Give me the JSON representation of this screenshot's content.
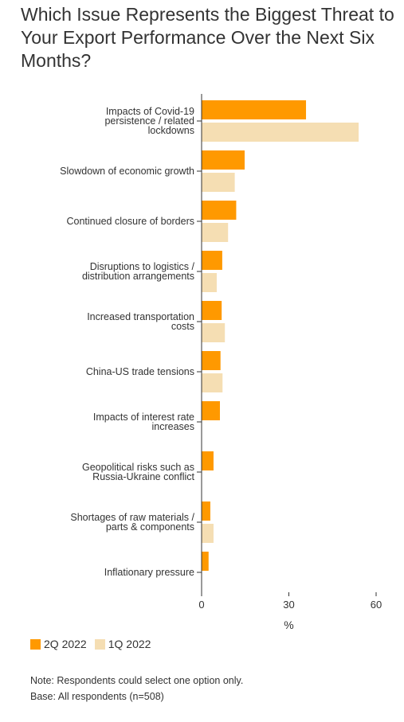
{
  "title": "Which Issue Represents the Biggest Threat to Your Export Performance Over the Next Six Months?",
  "colors": {
    "series_1": "#ff9900",
    "series_2": "#f5deb3",
    "axis": "#333333",
    "text": "#333333"
  },
  "chart_data": {
    "type": "bar",
    "orientation": "horizontal",
    "title": "Which Issue Represents the Biggest Threat to Your Export Performance Over the Next Six Months?",
    "categories": [
      "Impacts of Covid-19 persistence / related lockdowns",
      "Slowdown of economic growth",
      "Continued closure of borders",
      "Disruptions to logistics / distribution arrangements",
      "Increased transportation costs",
      "China-US trade tensions",
      "Impacts of interest rate increases",
      "Geopolitical risks such as Russia-Ukraine conflict",
      "Shortages of raw materials / parts & components",
      "Inflationary pressure"
    ],
    "category_label_lines": [
      [
        "Impacts of Covid-19",
        "persistence / related",
        "lockdowns"
      ],
      [
        "Slowdown of economic growth"
      ],
      [
        "Continued closure of borders"
      ],
      [
        "Disruptions to logistics /",
        "distribution arrangements"
      ],
      [
        "Increased transportation",
        "costs"
      ],
      [
        "China-US trade tensions"
      ],
      [
        "Impacts of interest rate",
        "increases"
      ],
      [
        "Geopolitical risks such as",
        "Russia-Ukraine conflict"
      ],
      [
        "Shortages of raw materials /",
        "parts & components"
      ],
      [
        "Inflationary pressure"
      ]
    ],
    "series": [
      {
        "name": "2Q 2022",
        "values": [
          35.9,
          14.8,
          11.9,
          7.1,
          6.9,
          6.5,
          6.3,
          4.1,
          3.0,
          2.4
        ]
      },
      {
        "name": "1Q 2022",
        "values": [
          54.0,
          11.4,
          9.1,
          5.2,
          8.0,
          7.2,
          0,
          0,
          4.1,
          0
        ]
      }
    ],
    "xlabel": "%",
    "ylabel": "",
    "xlim": [
      0,
      60
    ],
    "xticks": [
      0,
      30,
      60
    ],
    "grid": false,
    "legend_position": "bottom-left"
  },
  "legend": [
    {
      "label": "2Q 2022",
      "color": "#ff9900"
    },
    {
      "label": "1Q 2022",
      "color": "#f5deb3"
    }
  ],
  "notes": [
    "Note: Respondents could select one option only.",
    "Base: All respondents (n=508)"
  ]
}
